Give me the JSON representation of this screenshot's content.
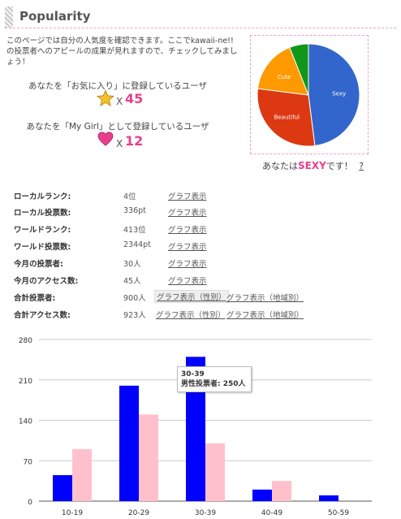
{
  "header": {
    "title": "Popularity"
  },
  "intro": {
    "text": "このページでは自分の人気度を確認できます。ここでkawaii-ne!!の投票者へのアピールの成果が見れますので、チェックしてみましょう！"
  },
  "favorites": {
    "label": "あなたを「お気に入り」に登録しているユーザ",
    "x": "X",
    "count": "45",
    "icon": "star-icon"
  },
  "mygirl": {
    "label": "あなたを「My Girl」として登録しているユーザ",
    "x": "X",
    "count": "12",
    "icon": "heart-icon"
  },
  "pie": {
    "slices": [
      {
        "label": "Sexy",
        "value": 48,
        "color": "#3366cc"
      },
      {
        "label": "Beautiful",
        "value": 29,
        "color": "#dc3912"
      },
      {
        "label": "Cute",
        "value": 17,
        "color": "#ff9900"
      },
      {
        "label": "",
        "value": 6,
        "color": "#109618"
      }
    ],
    "caption_pre": "あなたは",
    "caption_type": "SEXY",
    "caption_post": "です！",
    "help": "?"
  },
  "stats": [
    {
      "label": "ローカルランク:",
      "value": "4位",
      "links": [
        "グラフ表示"
      ]
    },
    {
      "label": "ローカル投票数:",
      "value": "336pt",
      "links": [
        "グラフ表示"
      ]
    },
    {
      "label": "ワールドランク:",
      "value": "413位",
      "links": [
        "グラフ表示"
      ]
    },
    {
      "label": "ワールド投票数:",
      "value": "2344pt",
      "links": [
        "グラフ表示"
      ]
    },
    {
      "label": "今月の投票者:",
      "value": "30人",
      "links": [
        "グラフ表示"
      ]
    },
    {
      "label": "今月のアクセス数:",
      "value": "45人",
      "links": [
        "グラフ表示"
      ]
    },
    {
      "label": "合計投票者:",
      "value": "900人",
      "links": [
        "グラフ表示（性別）",
        "グラフ表示（地域別）"
      ]
    },
    {
      "label": "合計アクセス数:",
      "value": "923人",
      "links": [
        "グラフ表示（性別）",
        "グラフ表示（地域別）"
      ]
    }
  ],
  "chart_data": {
    "type": "bar",
    "categories": [
      "10-19",
      "20-29",
      "30-39",
      "40-49",
      "50-59"
    ],
    "series": [
      {
        "values": [
          45,
          200,
          250,
          20,
          10
        ],
        "color": "#0000ff"
      },
      {
        "values": [
          90,
          150,
          100,
          35,
          0
        ],
        "color": "#ffc0cb"
      }
    ],
    "ylim": [
      0,
      280
    ],
    "yticks": [
      0,
      70,
      140,
      210,
      280
    ],
    "grid": true
  },
  "tooltip": {
    "line1": "30-39",
    "line2": "男性投票者: 250人"
  }
}
